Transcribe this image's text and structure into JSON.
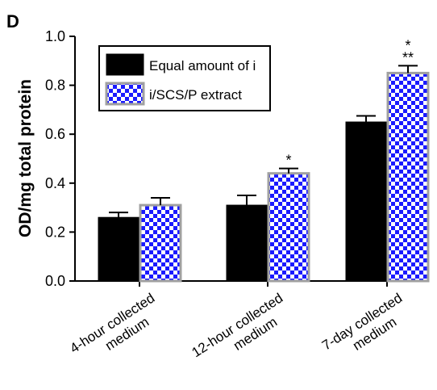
{
  "panel_label": "D",
  "chart_data": {
    "type": "bar",
    "ylabel": "OD/mg total protein",
    "ylim": [
      0,
      1.0
    ],
    "yticks": [
      "0.0",
      "0.2",
      "0.4",
      "0.6",
      "0.8",
      "1.0"
    ],
    "categories": [
      [
        "4-hour collected",
        "medium"
      ],
      [
        "12-hour collected",
        "medium"
      ],
      [
        "7-day collected",
        "medium"
      ]
    ],
    "series": [
      {
        "name": "Equal amount of i",
        "values": [
          0.26,
          0.31,
          0.65
        ],
        "errors": [
          0.02,
          0.04,
          0.025
        ],
        "color": "#000000"
      },
      {
        "name": "i/SCS/P extract",
        "values": [
          0.31,
          0.44,
          0.85
        ],
        "errors": [
          0.03,
          0.02,
          0.03
        ],
        "color": "#1a1aff",
        "pattern": "checkerboard"
      }
    ],
    "annotations": [
      {
        "category": 1,
        "series": 1,
        "text": "*"
      },
      {
        "category": 2,
        "series": 1,
        "text": "*"
      },
      {
        "category": 2,
        "series": 1,
        "text": "**"
      }
    ],
    "legend": "top-left",
    "grid": false
  }
}
